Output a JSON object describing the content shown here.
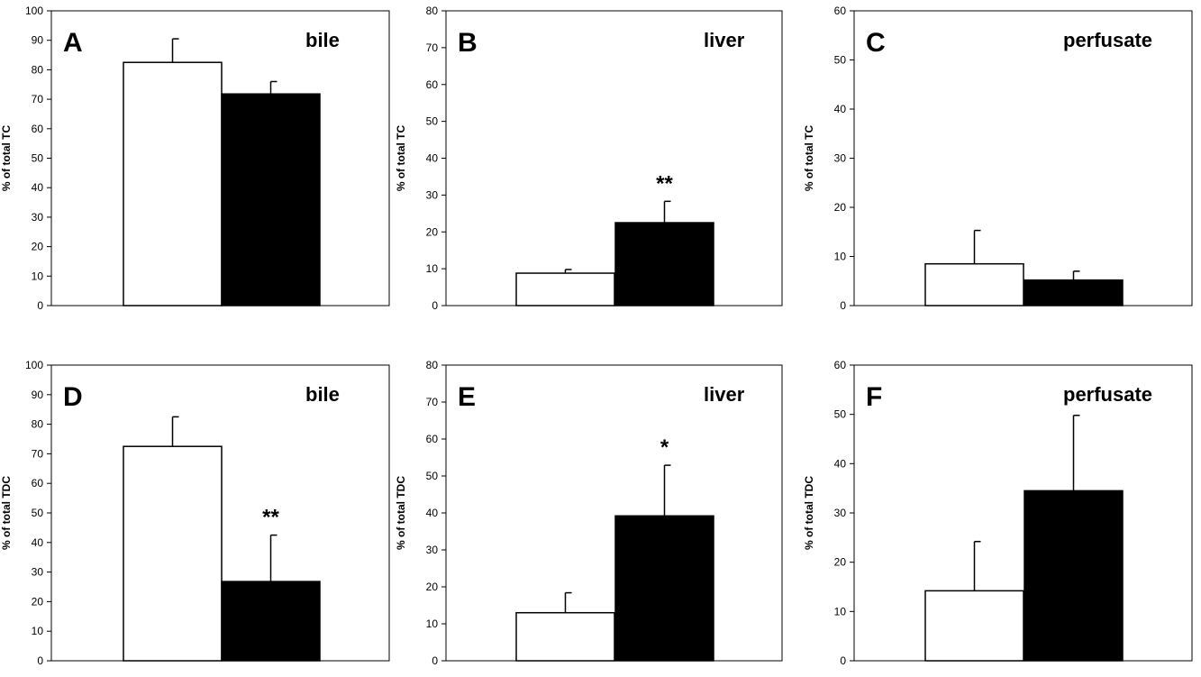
{
  "chart_data": [
    {
      "type": "bar",
      "panel_label": "A",
      "title": "bile",
      "ylabel": "% of total TC",
      "ylim": [
        0,
        100
      ],
      "yticks": [
        0,
        10,
        20,
        30,
        40,
        50,
        60,
        70,
        80,
        90,
        100
      ],
      "bar_colors": [
        "#ffffff",
        "#000000"
      ],
      "values": [
        82.5,
        71.8
      ],
      "errors": [
        8.0,
        4.2
      ],
      "significance": [
        "",
        ""
      ]
    },
    {
      "type": "bar",
      "panel_label": "B",
      "title": "liver",
      "ylabel": "% of total TC",
      "ylim": [
        0,
        80
      ],
      "yticks": [
        0,
        10,
        20,
        30,
        40,
        50,
        60,
        70,
        80
      ],
      "bar_colors": [
        "#ffffff",
        "#000000"
      ],
      "values": [
        8.8,
        22.5
      ],
      "errors": [
        1.0,
        5.8
      ],
      "significance": [
        "",
        "**"
      ]
    },
    {
      "type": "bar",
      "panel_label": "C",
      "title": "perfusate",
      "ylabel": "% of total TC",
      "ylim": [
        0,
        60
      ],
      "yticks": [
        0,
        10,
        20,
        30,
        40,
        50,
        60
      ],
      "bar_colors": [
        "#ffffff",
        "#000000"
      ],
      "values": [
        8.5,
        5.2
      ],
      "errors": [
        6.8,
        1.8
      ],
      "significance": [
        "",
        ""
      ]
    },
    {
      "type": "bar",
      "panel_label": "D",
      "title": "bile",
      "ylabel": "% of total TDC",
      "ylim": [
        0,
        100
      ],
      "yticks": [
        0,
        10,
        20,
        30,
        40,
        50,
        60,
        70,
        80,
        90,
        100
      ],
      "bar_colors": [
        "#ffffff",
        "#000000"
      ],
      "values": [
        72.5,
        26.8
      ],
      "errors": [
        10.0,
        15.7
      ],
      "significance": [
        "",
        "**"
      ]
    },
    {
      "type": "bar",
      "panel_label": "E",
      "title": "liver",
      "ylabel": "% of total TDC",
      "ylim": [
        0,
        80
      ],
      "yticks": [
        0,
        10,
        20,
        30,
        40,
        50,
        60,
        70,
        80
      ],
      "bar_colors": [
        "#ffffff",
        "#000000"
      ],
      "values": [
        13.0,
        39.2
      ],
      "errors": [
        5.4,
        13.7
      ],
      "significance": [
        "",
        "*"
      ]
    },
    {
      "type": "bar",
      "panel_label": "F",
      "title": "perfusate",
      "ylabel": "% of total TDC",
      "ylim": [
        0,
        60
      ],
      "yticks": [
        0,
        10,
        20,
        30,
        40,
        50,
        60
      ],
      "bar_colors": [
        "#ffffff",
        "#000000"
      ],
      "values": [
        14.2,
        34.5
      ],
      "errors": [
        10.0,
        15.3
      ],
      "significance": [
        "",
        ""
      ]
    }
  ]
}
